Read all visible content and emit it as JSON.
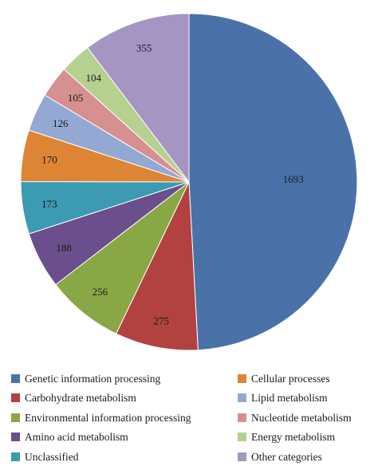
{
  "chart_data": {
    "type": "pie",
    "title": "",
    "start_angle_deg": 0,
    "direction": "clockwise",
    "legend_position": "bottom",
    "slices": [
      {
        "label": "Genetic information processing",
        "value": 1693,
        "value_label": "1693",
        "color": "#4a72a8"
      },
      {
        "label": "Carbohydrate metabolism",
        "value": 275,
        "value_label": "275",
        "color": "#b24240"
      },
      {
        "label": "Environmental information processing",
        "value": 256,
        "value_label": "256",
        "color": "#89a745"
      },
      {
        "label": "Amino acid metabolism",
        "value": 188,
        "value_label": "188",
        "color": "#6a4f8c"
      },
      {
        "label": "Unclassified",
        "value": 173,
        "value_label": "173",
        "color": "#3c9ab3"
      },
      {
        "label": "Cellular processes",
        "value": 170,
        "value_label": "170",
        "color": "#dd8535"
      },
      {
        "label": "Lipid metabolism",
        "value": 126,
        "value_label": "126",
        "color": "#93a9d3"
      },
      {
        "label": "Nucleotide metabolism",
        "value": 105,
        "value_label": "105",
        "color": "#d6908f"
      },
      {
        "label": "Energy metabolism",
        "value": 104,
        "value_label": "104",
        "color": "#b6d090"
      },
      {
        "label": "Other categories",
        "value": 355,
        "value_label": "355",
        "color": "#a595c3"
      }
    ],
    "legend_order": [
      "Genetic information processing",
      "Cellular processes",
      "Carbohydrate metabolism",
      "Lipid metabolism",
      "Environmental information processing",
      "Nucleotide metabolism",
      "Amino acid metabolism",
      "Energy metabolism",
      "Unclassified",
      "Other categories"
    ]
  }
}
